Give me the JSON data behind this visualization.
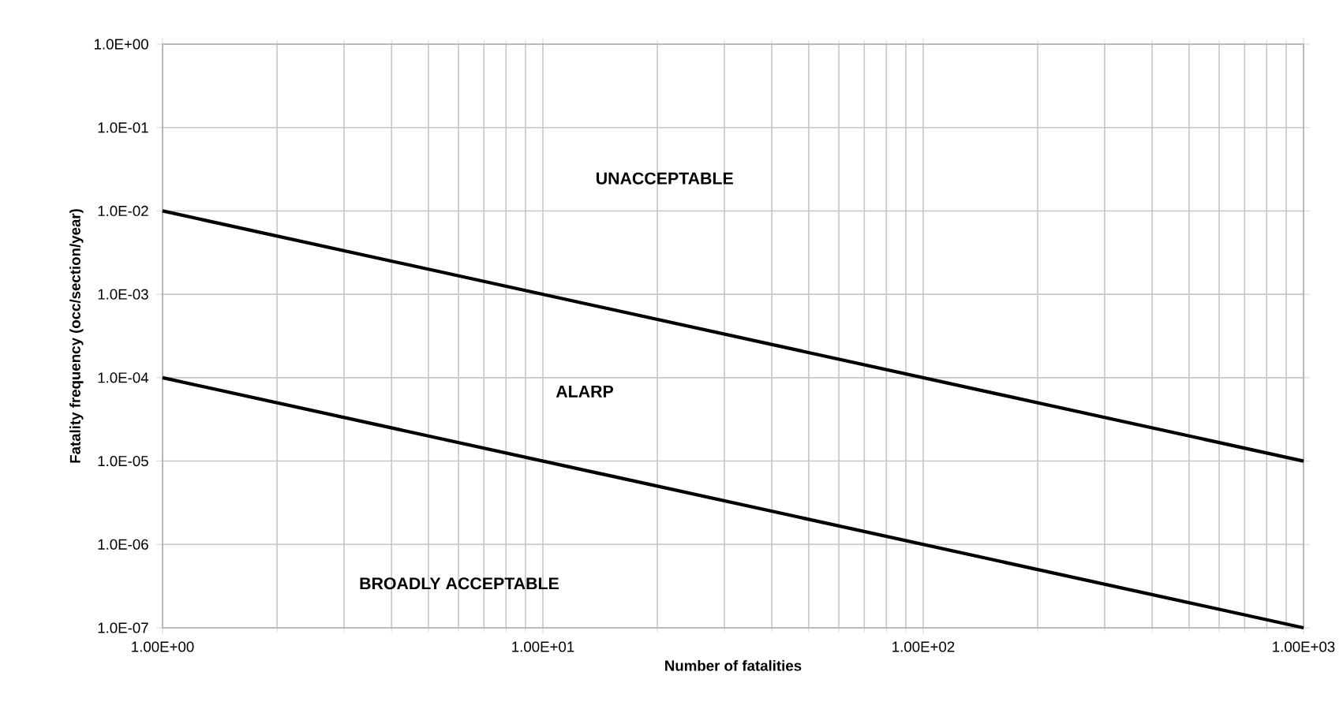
{
  "chart_data": {
    "type": "line",
    "xlabel": "Number of fatalities",
    "ylabel": "Fatality frequency (occ/section/year)",
    "log": "xy",
    "grid": true,
    "marker": "none",
    "line_style": "solid",
    "xlim": [
      1,
      1000
    ],
    "ylim": [
      1e-07,
      1
    ],
    "xticks": [
      {
        "value": 1,
        "label": "1.00E+00"
      },
      {
        "value": 10,
        "label": "1.00E+01"
      },
      {
        "value": 100,
        "label": "1.00E+02"
      },
      {
        "value": 1000,
        "label": "1.00E+03"
      }
    ],
    "yticks": [
      {
        "value": 1e-07,
        "label": "1.0E-07"
      },
      {
        "value": 1e-06,
        "label": "1.0E-06"
      },
      {
        "value": 1e-05,
        "label": "1.0E-05"
      },
      {
        "value": 0.0001,
        "label": "1.0E-04"
      },
      {
        "value": 0.001,
        "label": "1.0E-03"
      },
      {
        "value": 0.01,
        "label": "1.0E-02"
      },
      {
        "value": 0.1,
        "label": "1.0E-01"
      },
      {
        "value": 1,
        "label": "1.0E+00"
      }
    ],
    "x": [
      1,
      1000
    ],
    "series": [
      {
        "color": "#000000",
        "values": [
          0.01,
          1e-05
        ]
      },
      {
        "color": "#000000",
        "values": [
          0.0001,
          1e-07
        ]
      }
    ],
    "annotations": [
      "UNACCEPTABLE",
      "ALARP",
      "BROADLY ACCEPTABLE"
    ]
  }
}
